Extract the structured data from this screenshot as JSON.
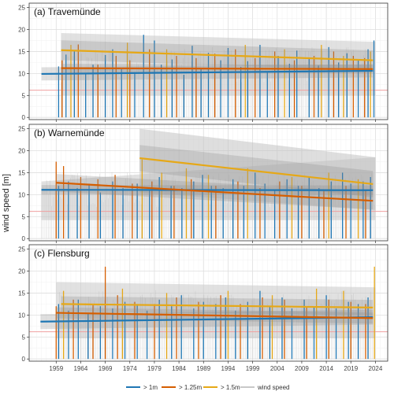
{
  "figure": {
    "ylabel": "wind speed [m]",
    "legend": [
      {
        "label": "> 1m",
        "color": "#1f77b4"
      },
      {
        "label": "> 1.25m",
        "color": "#d55e00"
      },
      {
        "label": "> 1.5m",
        "color": "#e6a817"
      },
      {
        "label": "wind speed",
        "color": "#c8c8c8"
      }
    ],
    "legend_placement": "bottom",
    "reference_line": {
      "value": 6.2,
      "color": "#f0a0a0"
    }
  },
  "chart_data": [
    {
      "type": "line",
      "title": "(a) Travemünde",
      "xlim": [
        1953.5,
        2026.5
      ],
      "ylim": [
        -0.5,
        26
      ],
      "x_ticks": [
        1959,
        1964,
        1969,
        1974,
        1979,
        1984,
        1989,
        1994,
        1999,
        2004,
        2009,
        2014,
        2019,
        2024
      ],
      "y_ticks": [
        0,
        5,
        10,
        15,
        20,
        25
      ],
      "grid": true,
      "band": {
        "x_start": 1960,
        "x_end": 2024,
        "upper": [
          19.2,
          17.2
        ],
        "lower": [
          5.0,
          5.0
        ]
      },
      "series": [
        {
          "name": "> 1m",
          "trend": {
            "x": [
              1956,
              2023.5
            ],
            "y": [
              9.9,
              10.6
            ]
          },
          "band": [
            8.8,
            11.8
          ]
        },
        {
          "name": "> 1.25m",
          "trend": {
            "x": [
              1960,
              2023.5
            ],
            "y": [
              11.2,
              11.0
            ]
          },
          "band": [
            10.0,
            12.0
          ]
        },
        {
          "name": "> 1.5m",
          "trend": {
            "x": [
              1960,
              2023.5
            ],
            "y": [
              15.3,
              13.0
            ]
          },
          "band": [
            12.0,
            16.5
          ]
        }
      ],
      "spikes": {
        "> 1m": [
          [
            1959.5,
            11.6
          ],
          [
            1961,
            14.3
          ],
          [
            1962.7,
            15.2
          ],
          [
            1965,
            9.8
          ],
          [
            1966.5,
            12
          ],
          [
            1969,
            14.2
          ],
          [
            1970.5,
            15.5
          ],
          [
            1972.3,
            11
          ],
          [
            1975,
            10.3
          ],
          [
            1976.8,
            18.8
          ],
          [
            1979,
            17.5
          ],
          [
            1980.4,
            12
          ],
          [
            1982.6,
            13.2
          ],
          [
            1985,
            9.7
          ],
          [
            1986.7,
            16.3
          ],
          [
            1988.5,
            11.3
          ],
          [
            1990,
            14.7
          ],
          [
            1992.5,
            13
          ],
          [
            1994,
            15.8
          ],
          [
            1996.6,
            11.5
          ],
          [
            1998,
            12.8
          ],
          [
            2000.5,
            16.5
          ],
          [
            2002,
            10.5
          ],
          [
            2004.2,
            14
          ],
          [
            2006.5,
            12.2
          ],
          [
            2008,
            15.2
          ],
          [
            2010.5,
            13.5
          ],
          [
            2012.4,
            11.8
          ],
          [
            2014.5,
            16
          ],
          [
            2016.5,
            12.5
          ],
          [
            2018.2,
            14.6
          ],
          [
            2020.5,
            13
          ],
          [
            2022.5,
            15.5
          ],
          [
            2023.7,
            17.5
          ]
        ],
        "> 1.25m": [
          [
            1960.2,
            13
          ],
          [
            1963.5,
            16.6
          ],
          [
            1967.5,
            12
          ],
          [
            1971.2,
            14
          ],
          [
            1974,
            13
          ],
          [
            1978,
            15.5
          ],
          [
            1983.5,
            14
          ],
          [
            1987.5,
            13.5
          ],
          [
            1991.3,
            14.5
          ],
          [
            1995.5,
            15.5
          ],
          [
            1999.5,
            13.5
          ],
          [
            2003.5,
            15
          ],
          [
            2007.5,
            13
          ],
          [
            2011.5,
            14
          ],
          [
            2015.5,
            15
          ],
          [
            2019.5,
            14
          ],
          [
            2021.8,
            13.5
          ]
        ],
        "> 1.5m": [
          [
            1962,
            16.5
          ],
          [
            1973.5,
            17
          ],
          [
            1981.5,
            15.5
          ],
          [
            1997.5,
            16.5
          ],
          [
            2005.5,
            15.5
          ],
          [
            2013,
            16.5
          ],
          [
            2017.5,
            14
          ],
          [
            2023,
            15
          ]
        ]
      }
    },
    {
      "type": "line",
      "title": "(b) Warnemünde",
      "xlim": [
        1953.5,
        2026.5
      ],
      "ylim": [
        -0.5,
        26
      ],
      "x_ticks": [
        1959,
        1964,
        1969,
        1974,
        1979,
        1984,
        1989,
        1994,
        1999,
        2004,
        2009,
        2014,
        2019,
        2024
      ],
      "y_ticks": [
        0,
        5,
        10,
        15,
        20,
        25
      ],
      "grid": true,
      "band": {
        "x_start": 1956,
        "x_end": 2024,
        "upper": [
          13.0,
          18.5
        ],
        "lower": [
          4.2,
          4.2
        ]
      },
      "extra_band": {
        "x_start": 1976,
        "x_end": 2024,
        "upper": [
          25.0,
          18.5
        ],
        "lower": [
          10.5,
          6.5
        ]
      },
      "series": [
        {
          "name": "> 1m",
          "trend": {
            "x": [
              1956,
              2023.5
            ],
            "y": [
              11.1,
              11.0
            ]
          },
          "band": [
            10.0,
            12.2
          ]
        },
        {
          "name": "> 1.25m",
          "trend": {
            "x": [
              1959,
              2023.5
            ],
            "y": [
              12.7,
              8.6
            ]
          },
          "band": [
            10.5,
            14.5
          ]
        },
        {
          "name": "> 1.5m",
          "trend": {
            "x": [
              1976,
              2023.5
            ],
            "y": [
              18.3,
              12.4
            ]
          },
          "band": [
            14.0,
            20.0
          ]
        }
      ],
      "spikes": {
        "> 1m": [
          [
            1959.5,
            12
          ],
          [
            1961.5,
            13
          ],
          [
            1963.3,
            11.5
          ],
          [
            1965.7,
            12.5
          ],
          [
            1968,
            10.5
          ],
          [
            1970.5,
            13
          ],
          [
            1972.6,
            11.5
          ],
          [
            1975.5,
            12.5
          ],
          [
            1978,
            11
          ],
          [
            1980,
            14
          ],
          [
            1982.4,
            12
          ],
          [
            1984.6,
            11.5
          ],
          [
            1987,
            13
          ],
          [
            1988.8,
            14.5
          ],
          [
            1990.6,
            12
          ],
          [
            1993,
            11.5
          ],
          [
            1995,
            13.5
          ],
          [
            1997.2,
            12
          ],
          [
            1999.5,
            15
          ],
          [
            2001.5,
            12.5
          ],
          [
            2003.5,
            11
          ],
          [
            2006,
            13.5
          ],
          [
            2008.3,
            12
          ],
          [
            2010.5,
            14
          ],
          [
            2012.5,
            11.5
          ],
          [
            2015,
            13
          ],
          [
            2017.3,
            15
          ],
          [
            2019,
            12.5
          ],
          [
            2021.5,
            13
          ],
          [
            2023,
            14
          ]
        ],
        "> 1.25m": [
          [
            1959,
            17.5
          ],
          [
            1960.5,
            16.5
          ],
          [
            1964,
            14
          ],
          [
            1967.5,
            13.5
          ],
          [
            1971,
            14.5
          ],
          [
            1974.5,
            12.5
          ],
          [
            1978.5,
            13
          ],
          [
            1983,
            12
          ],
          [
            1986.5,
            13.5
          ],
          [
            1991.5,
            12
          ],
          [
            1996,
            13
          ],
          [
            2000.5,
            11.5
          ],
          [
            2004.5,
            13
          ],
          [
            2009,
            12
          ],
          [
            2013.5,
            11
          ],
          [
            2018,
            12
          ],
          [
            2022,
            11
          ]
        ],
        "> 1.5m": [
          [
            1976.5,
            18
          ],
          [
            1980.5,
            15
          ],
          [
            1985.5,
            16
          ],
          [
            1990,
            14.5
          ],
          [
            1998,
            16
          ],
          [
            2007,
            14
          ],
          [
            2014.5,
            15
          ],
          [
            2020.5,
            13.5
          ]
        ]
      }
    },
    {
      "type": "line",
      "title": "(c) Flensburg",
      "xlim": [
        1953.5,
        2026.5
      ],
      "ylim": [
        -0.5,
        26
      ],
      "x_ticks": [
        1959,
        1964,
        1969,
        1974,
        1979,
        1984,
        1989,
        1994,
        1999,
        2004,
        2009,
        2014,
        2019,
        2024
      ],
      "y_ticks": [
        0,
        5,
        10,
        15,
        20,
        25
      ],
      "grid": true,
      "band": {
        "x_start": 1959,
        "x_end": 2024,
        "upper": [
          17.5,
          16.3
        ],
        "lower": [
          4.7,
          4.7
        ]
      },
      "series": [
        {
          "name": "> 1m",
          "trend": {
            "x": [
              1955.8,
              2023.5
            ],
            "y": [
              8.5,
              9.5
            ]
          },
          "band": [
            7.3,
            10.7
          ]
        },
        {
          "name": "> 1.25m",
          "trend": {
            "x": [
              1959,
              2023.5
            ],
            "y": [
              10.5,
              9.3
            ]
          },
          "band": [
            9.0,
            11.5
          ]
        },
        {
          "name": "> 1.5m",
          "trend": {
            "x": [
              1960,
              2023.5
            ],
            "y": [
              12.5,
              11.7
            ]
          },
          "band": [
            11.0,
            14.5
          ]
        }
      ],
      "spikes": {
        "> 1m": [
          [
            1959.5,
            12.5
          ],
          [
            1961.5,
            11
          ],
          [
            1963.5,
            13.5
          ],
          [
            1965.5,
            10.5
          ],
          [
            1968,
            12
          ],
          [
            1970.5,
            11.5
          ],
          [
            1973,
            13
          ],
          [
            1975.5,
            12.5
          ],
          [
            1977.5,
            11
          ],
          [
            1980,
            13.5
          ],
          [
            1982.5,
            12
          ],
          [
            1984.5,
            14.5
          ],
          [
            1987,
            11.5
          ],
          [
            1989,
            13
          ],
          [
            1991.5,
            12.5
          ],
          [
            1993.5,
            14
          ],
          [
            1995.5,
            11
          ],
          [
            1998,
            13
          ],
          [
            2000.5,
            15.5
          ],
          [
            2002.5,
            12
          ],
          [
            2005,
            14
          ],
          [
            2007,
            11.5
          ],
          [
            2009.5,
            13.5
          ],
          [
            2011.5,
            12
          ],
          [
            2014,
            14.5
          ],
          [
            2016,
            11.5
          ],
          [
            2018.5,
            13
          ],
          [
            2020.5,
            12.5
          ],
          [
            2022.5,
            14
          ]
        ],
        "> 1.25m": [
          [
            1959,
            12
          ],
          [
            1962.5,
            13.5
          ],
          [
            1966.5,
            12.5
          ],
          [
            1969,
            21
          ],
          [
            1971.5,
            14.5
          ],
          [
            1975,
            13
          ],
          [
            1979,
            12.5
          ],
          [
            1983.5,
            14
          ],
          [
            1988,
            13
          ],
          [
            1992.5,
            14.5
          ],
          [
            1996.5,
            12.5
          ],
          [
            2001,
            14
          ],
          [
            2005.5,
            13.5
          ],
          [
            2010,
            12
          ],
          [
            2014.5,
            13.5
          ],
          [
            2019,
            13
          ],
          [
            2022,
            12.5
          ]
        ],
        "> 1.5m": [
          [
            1960.5,
            15.5
          ],
          [
            1972.5,
            16
          ],
          [
            1981.5,
            15
          ],
          [
            1994,
            15.5
          ],
          [
            2003,
            14.5
          ],
          [
            2012,
            16
          ],
          [
            2017.5,
            15.5
          ],
          [
            2023.8,
            21
          ]
        ]
      }
    }
  ]
}
